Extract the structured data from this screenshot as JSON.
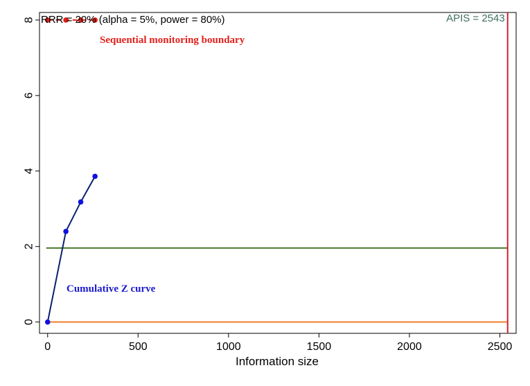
{
  "chart_data": {
    "type": "line",
    "title": "",
    "xlabel": "Information size",
    "ylabel": "",
    "xlim": [
      -45,
      2590
    ],
    "ylim": [
      -0.3,
      8.2
    ],
    "x_ticks": [
      0,
      500,
      1000,
      1500,
      2000,
      2500
    ],
    "y_ticks": [
      0,
      2,
      4,
      6,
      8
    ],
    "grid": false,
    "legend": "none",
    "series": [
      {
        "name": "Cumulative Z curve",
        "color": "#0a1f6e",
        "marker_color": "#1010e0",
        "x": [
          0,
          101,
          183,
          262
        ],
        "y": [
          0,
          2.4,
          3.18,
          3.86
        ]
      },
      {
        "name": "Sequential monitoring boundary",
        "color": "#e0201a",
        "style": "dashed",
        "x": [
          0,
          101,
          183,
          262
        ],
        "y": [
          8,
          8,
          8,
          8
        ]
      }
    ],
    "reference_lines": [
      {
        "orientation": "horizontal",
        "value": 1.96,
        "color": "#4a7a2a"
      },
      {
        "orientation": "horizontal",
        "value": 0,
        "color": "#f07f2a"
      },
      {
        "orientation": "vertical",
        "value": 2543,
        "color": "#d0202e"
      }
    ],
    "annotations": [
      {
        "text": "RRR = 20% (alpha = 5%, power = 80%)",
        "x": -45,
        "y": 8.1,
        "color": "#000000",
        "style": "plain"
      },
      {
        "text": "APIS = 2543",
        "x": 2543,
        "y": 8.1,
        "color": "#3f6e5e",
        "style": "plain"
      },
      {
        "text": "Sequential monitoring boundary",
        "x": 295,
        "y": 7.5,
        "color": "#e0201a",
        "style": "serif"
      },
      {
        "text": "Cumulative Z curve",
        "x": 108,
        "y": 0.97,
        "color": "#1a1acc",
        "style": "serif"
      }
    ]
  }
}
